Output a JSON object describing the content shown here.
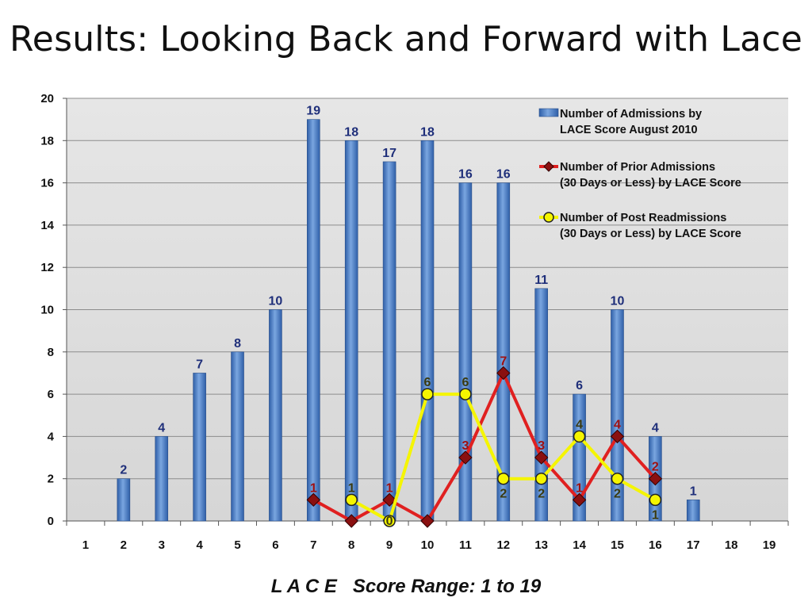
{
  "slide": {
    "title": "Results: Looking Back and Forward with Lace"
  },
  "chart_data": {
    "type": "bar",
    "x": [
      1,
      2,
      3,
      4,
      5,
      6,
      7,
      8,
      9,
      10,
      11,
      12,
      13,
      14,
      15,
      16,
      17,
      18,
      19
    ],
    "ylim": [
      0,
      20
    ],
    "yticks": [
      0,
      2,
      4,
      6,
      8,
      10,
      12,
      14,
      16,
      18,
      20
    ],
    "xlabel": "L A C E   Score Range: 1 to 19",
    "ylabel": "",
    "grid": true,
    "legend_position": "top-right",
    "series": [
      {
        "name": "Number of Admissions by LACE Score August 2010",
        "legend_lines": [
          "Number of Admissions by",
          "LACE Score August 2010"
        ],
        "kind": "bar",
        "color": "#4f81bd",
        "values": [
          0,
          2,
          4,
          7,
          8,
          10,
          19,
          18,
          17,
          18,
          16,
          16,
          11,
          6,
          10,
          4,
          1,
          0,
          0
        ],
        "labels": [
          null,
          "2",
          "4",
          "7",
          "8",
          "10",
          "19",
          "18",
          "17",
          "18",
          "16",
          "16",
          "11",
          "6",
          "10",
          "4",
          "1",
          null,
          null
        ]
      },
      {
        "name": "Number of Prior Admissions (30 Days or Less) by LACE Score",
        "legend_lines": [
          "Number of Prior Admissions",
          "(30 Days or Less) by LACE Score"
        ],
        "kind": "line",
        "color": "#e02020",
        "x": [
          7,
          8,
          9,
          10,
          11,
          12,
          13,
          14,
          15,
          16
        ],
        "values": [
          1,
          0,
          1,
          0,
          3,
          7,
          3,
          1,
          4,
          2
        ],
        "labels": [
          "1",
          null,
          "1",
          null,
          "3",
          "7",
          "3",
          "1",
          "4",
          "2"
        ]
      },
      {
        "name": "Number of Post Readmissions (30 Days or Less) by LACE Score",
        "legend_lines": [
          "Number of Post Readmissions",
          "(30 Days or Less) by LACE Score"
        ],
        "kind": "line",
        "color": "#f5f500",
        "x": [
          8,
          9,
          10,
          11,
          12,
          13,
          14,
          15,
          16
        ],
        "values": [
          1,
          0,
          6,
          6,
          2,
          2,
          4,
          2,
          1
        ],
        "labels": [
          "1",
          "0",
          "6",
          "6",
          "2",
          "2",
          "4",
          "2",
          "1"
        ]
      }
    ]
  }
}
